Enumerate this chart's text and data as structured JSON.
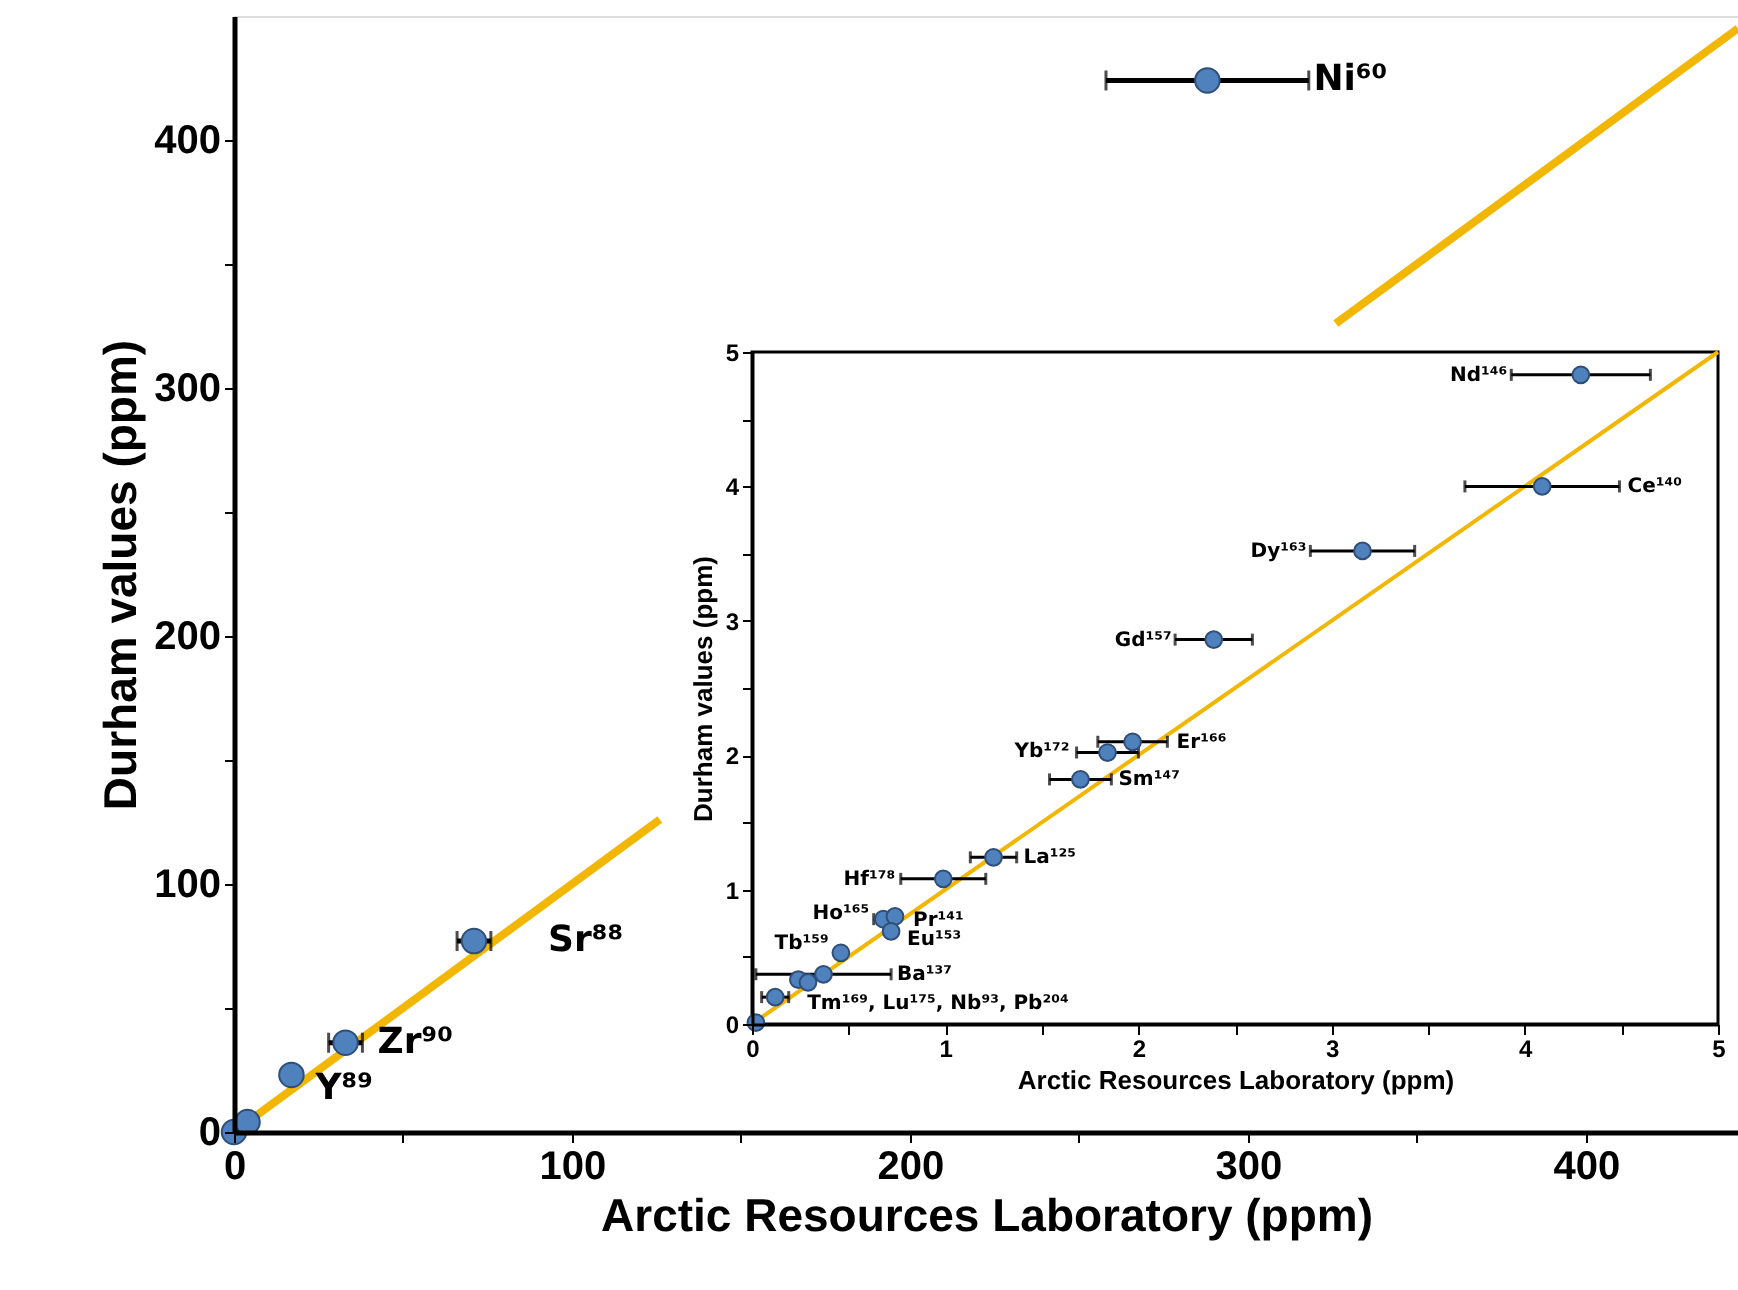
{
  "chart_data": [
    {
      "type": "scatter",
      "xlabel": "Arctic Resources Laboratory (ppm)",
      "ylabel": "Durham values (ppm)",
      "xlim": [
        0,
        445
      ],
      "ylim": [
        0,
        450
      ],
      "xticks": [
        0,
        {
          "value": 50,
          "label": null
        },
        100,
        {
          "value": 150,
          "label": null
        },
        200,
        {
          "value": 250,
          "label": null
        },
        300,
        {
          "value": 350,
          "label": null
        },
        400
      ],
      "yticks": [
        0,
        {
          "value": 50,
          "label": null
        },
        100,
        {
          "value": 150,
          "label": null
        },
        200,
        {
          "value": 250,
          "label": null
        },
        300,
        {
          "value": 350,
          "label": null
        },
        400
      ],
      "grid": false,
      "marker": "circle",
      "series": [
        {
          "type": "line",
          "marker": "none",
          "color": "#f2b705",
          "x": [
            0,
            126
          ],
          "values": [
            0,
            126
          ]
        },
        {
          "type": "line",
          "marker": "none",
          "color": "#f2b705",
          "x": [
            326,
            445
          ],
          "values": [
            326,
            445
          ]
        },
        {
          "color": "#4f81bd",
          "x": [
            0,
            3,
            4,
            17,
            33,
            71,
            288
          ],
          "values": [
            0,
            null,
            4,
            23,
            36,
            77,
            424
          ],
          "xerrors": [
            null,
            null,
            null,
            null,
            5,
            5,
            30
          ]
        }
      ],
      "annotations": [
        {
          "text": "Ni⁶⁰",
          "x": 288,
          "y": 424
        },
        {
          "text": "Sr⁸⁸",
          "x": 71,
          "y": 77
        },
        {
          "text": "Zr⁹⁰",
          "x": 33,
          "y": 36
        },
        {
          "text": "Y⁸⁹",
          "x": 17,
          "y": 23
        }
      ]
    },
    {
      "type": "scatter",
      "xlabel": "Arctic Resources Laboratory (ppm)",
      "ylabel": "Durham values (ppm)",
      "xlim": [
        0,
        5
      ],
      "ylim": [
        0,
        5
      ],
      "xticks": [
        0,
        {
          "value": 0.5,
          "label": null
        },
        1,
        {
          "value": 1.5,
          "label": null
        },
        2,
        {
          "value": 2.5,
          "label": null
        },
        3,
        {
          "value": 3.5,
          "label": null
        },
        4,
        {
          "value": 4.5,
          "label": null
        },
        5
      ],
      "yticks": [
        0,
        {
          "value": 0.5,
          "label": null
        },
        1,
        {
          "value": 1.5,
          "label": null
        },
        2,
        {
          "value": 2.5,
          "label": null
        },
        3,
        {
          "value": 3.5,
          "label": null
        },
        4,
        {
          "value": 4.5,
          "label": null
        },
        5
      ],
      "grid": false,
      "marker": "circle",
      "series": [
        {
          "type": "line",
          "marker": "none",
          "color": "#f2b705",
          "x": [
            0,
            5
          ],
          "values": [
            0,
            5
          ]
        },
        {
          "color": "#4f81bd",
          "x": [
            4.29,
            4.09,
            3.16,
            2.39,
            1.97,
            1.84,
            1.7,
            1.25,
            0.99,
            0.68,
            0.74,
            0.72,
            0.46,
            0.37,
            0.24,
            0.29,
            0.12,
            0.02
          ],
          "values": [
            4.83,
            4.0,
            3.52,
            2.86,
            2.1,
            2.02,
            1.82,
            1.24,
            1.08,
            0.78,
            0.8,
            0.69,
            0.53,
            0.37,
            0.33,
            0.31,
            0.2,
            0.01
          ],
          "xerrors": [
            0.36,
            0.4,
            0.27,
            0.2,
            0.18,
            0.16,
            0.16,
            0.12,
            0.22,
            0.05,
            null,
            null,
            null,
            0.35,
            null,
            null,
            0.07,
            null
          ]
        }
      ],
      "annotations": [
        {
          "text": "Nd¹⁴⁶",
          "x": 3.93,
          "y": 4.83
        },
        {
          "text": "Ce¹⁴⁰",
          "x": 4.49,
          "y": 4.0
        },
        {
          "text": "Dy¹⁶³",
          "x": 3.16,
          "y": 3.52
        },
        {
          "text": "Gd¹⁵⁷",
          "x": 2.39,
          "y": 2.86
        },
        {
          "text": "Er¹⁶⁶",
          "x": 1.97,
          "y": 2.1
        },
        {
          "text": "Yb¹⁷²",
          "x": 1.84,
          "y": 2.02
        },
        {
          "text": "Sm¹⁴⁷",
          "x": 1.7,
          "y": 1.82
        },
        {
          "text": "La¹²⁵",
          "x": 1.25,
          "y": 1.24
        },
        {
          "text": "Hf¹⁷⁸",
          "x": 0.99,
          "y": 1.08
        },
        {
          "text": "Ho¹⁶⁵",
          "x": 0.68,
          "y": 0.78
        },
        {
          "text": "Pr¹⁴¹",
          "x": 0.74,
          "y": 0.8
        },
        {
          "text": "Eu¹⁵³",
          "x": 0.72,
          "y": 0.69
        },
        {
          "text": "Tb¹⁵⁹",
          "x": 0.46,
          "y": 0.53
        },
        {
          "text": "Ba¹³⁷",
          "x": 0.72,
          "y": 0.37
        },
        {
          "text": "Tm¹⁶⁹, Lu¹⁷⁵, Nb⁹³, Pb²⁰⁴",
          "x": 0.12,
          "y": 0.2
        }
      ]
    }
  ]
}
